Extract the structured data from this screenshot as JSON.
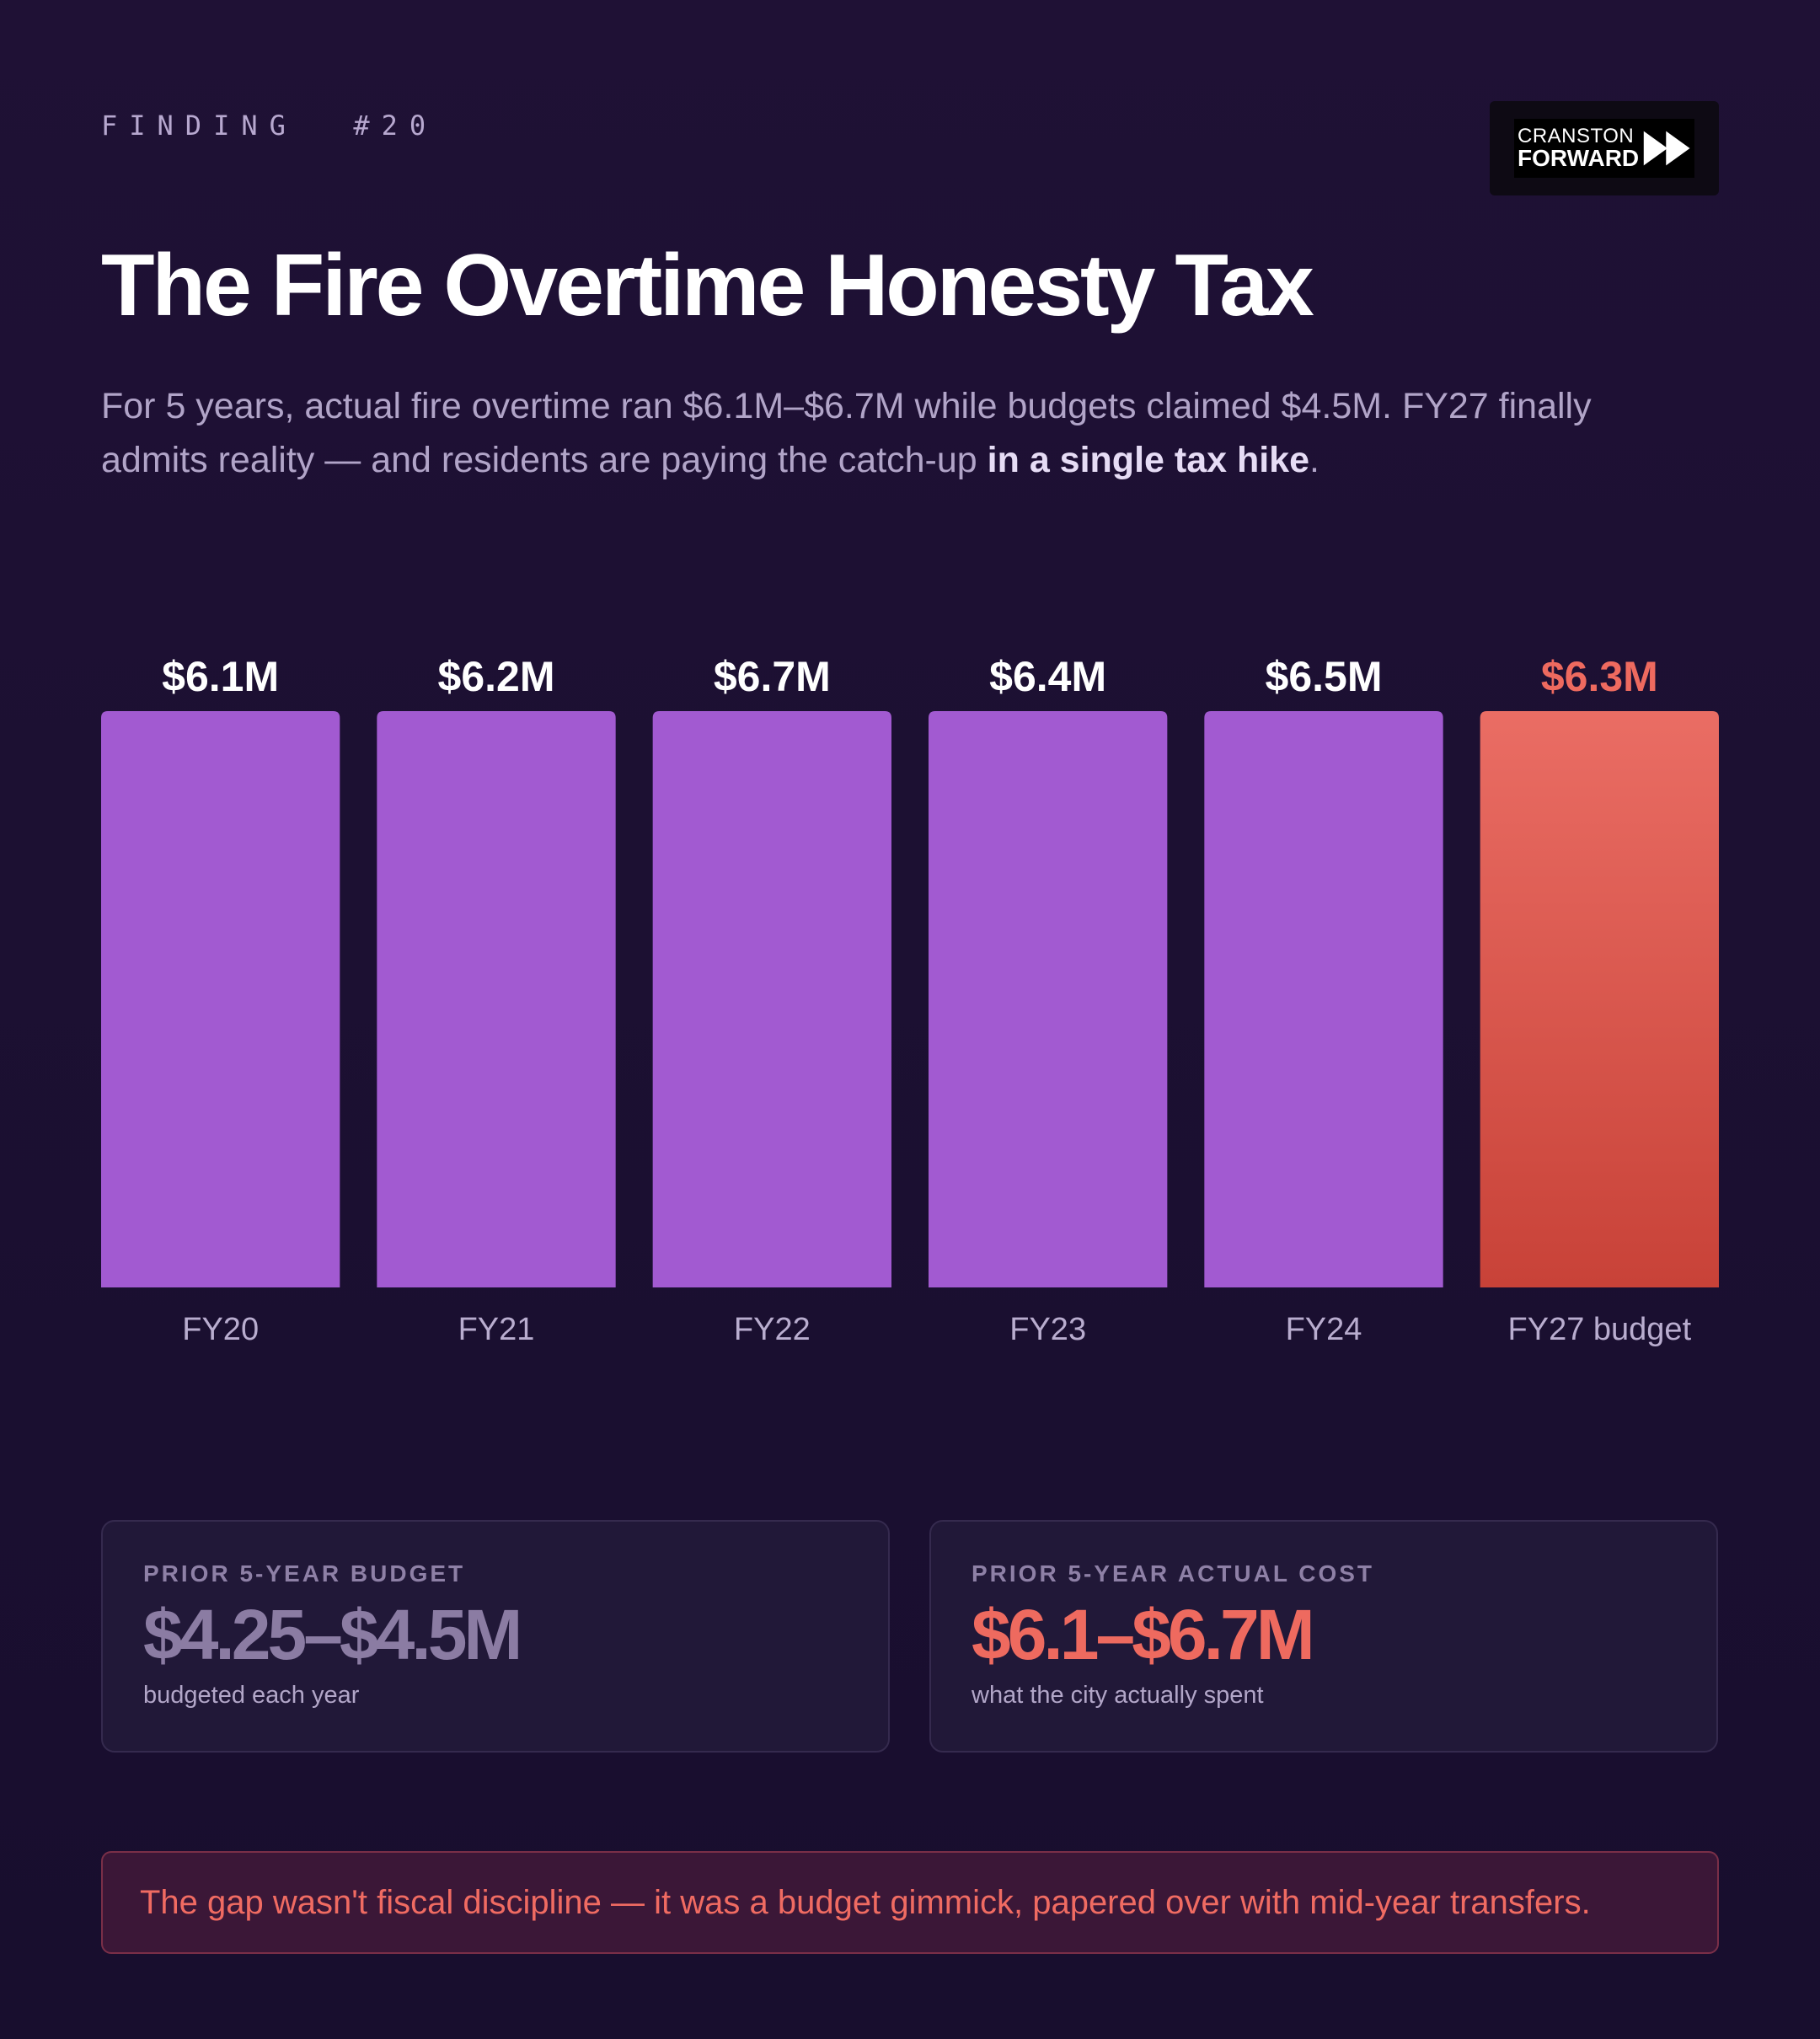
{
  "header": {
    "finding_tag": "FINDING  #20",
    "title": "The Fire Overtime Honesty Tax",
    "subtitle_plain": "For 5 years, actual fire overtime ran $6.1M–$6.7M while budgets claimed $4.5M. FY27 finally admits reality — and residents are paying the catch-up ",
    "subtitle_bold": "in a single tax hike",
    "subtitle_end": "."
  },
  "logo": {
    "line1": "CRANSTON",
    "line2": "FORWARD",
    "icon": "fast-forward-icon"
  },
  "colors": {
    "background": "#1c1032",
    "bar": "#a25ad1",
    "bar_highlight_top": "#ea6d64",
    "bar_highlight_bottom": "#c84238",
    "accent_red": "#ee6a5f",
    "muted_value": "#8b7ca3"
  },
  "chart_data": {
    "type": "bar",
    "categories": [
      "FY20",
      "FY21",
      "FY22",
      "FY23",
      "FY24",
      "FY27 budget"
    ],
    "values": [
      6.1,
      6.2,
      6.7,
      6.4,
      6.5,
      6.3
    ],
    "value_labels": [
      "$6.1M",
      "$6.2M",
      "$6.7M",
      "$6.4M",
      "$6.5M",
      "$6.3M"
    ],
    "highlight_index": 5,
    "title": "",
    "xlabel": "",
    "ylabel": "",
    "grid": false,
    "legend": "none"
  },
  "cards": [
    {
      "label": "PRIOR 5-YEAR BUDGET",
      "value": "$4.25–$4.5M",
      "note": "budgeted each year",
      "value_color": "#8b7ca3"
    },
    {
      "label": "PRIOR 5-YEAR ACTUAL COST",
      "value": "$6.1–$6.7M",
      "note": "what the city actually spent",
      "value_color": "#ee6a5f"
    }
  ],
  "callout": "The gap wasn't fiscal discipline — it was a budget gimmick, papered over with mid-year transfers."
}
